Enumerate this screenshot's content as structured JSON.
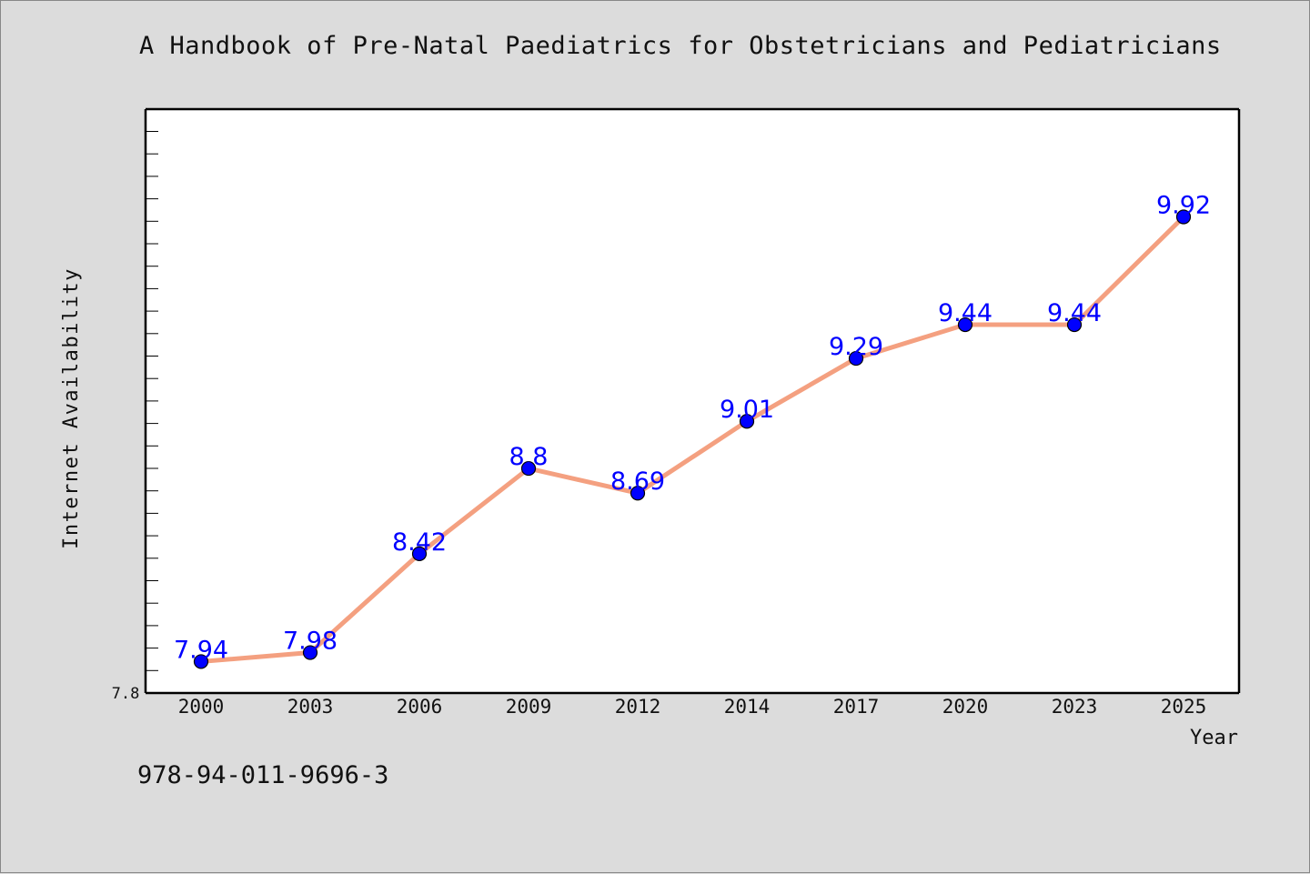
{
  "header": {
    "title": "A Handbook of Pre-Natal Paediatrics for Obstetricians and Pediatricians"
  },
  "footer": {
    "isbn": "978-94-011-9696-3"
  },
  "colors": {
    "background": "#dcdcdc",
    "plot_background": "#ffffff",
    "line": "#f4a080",
    "marker": "#0000ff",
    "data_label": "#0000ff",
    "axis": "#000000"
  },
  "chart_data": {
    "type": "line",
    "title": "A Handbook of Pre-Natal Paediatrics for Obstetricians and Pediatricians",
    "xlabel": "Year",
    "ylabel": "Internet Availability",
    "categories": [
      "2000",
      "2003",
      "2006",
      "2009",
      "2012",
      "2014",
      "2017",
      "2020",
      "2023",
      "2025"
    ],
    "series": [
      {
        "values": [
          7.94,
          7.98,
          8.42,
          8.8,
          8.69,
          9.01,
          9.29,
          9.44,
          9.44,
          9.92
        ],
        "labels": [
          "7.94",
          "7.98",
          "8.42",
          "8.8",
          "8.69",
          "9.01",
          "9.29",
          "9.44",
          "9.44",
          "9.92"
        ]
      }
    ],
    "ylim": [
      7.8,
      10.4
    ],
    "y_tick_labels": [
      "7.8"
    ],
    "grid": false,
    "legend": "none"
  }
}
